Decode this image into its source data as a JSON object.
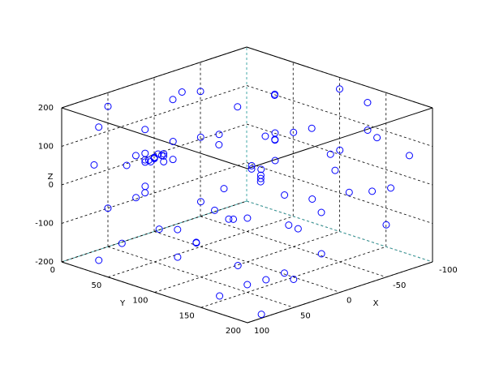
{
  "chart_data": {
    "type": "scatter3d",
    "xlabel": "X",
    "ylabel": "Y",
    "zlabel": "Z",
    "xlim": [
      -100,
      100
    ],
    "ylim": [
      0,
      200
    ],
    "zlim": [
      -200,
      200
    ],
    "xticks": [
      100,
      50,
      0,
      -50,
      -100
    ],
    "yticks": [
      0,
      50,
      100,
      150,
      200
    ],
    "zticks": [
      -200,
      -100,
      0,
      100,
      200
    ],
    "grid": true,
    "color": "#0000ff",
    "marker": "circle",
    "x": [
      80,
      60,
      40,
      90,
      70,
      20,
      -10,
      -40,
      -60,
      -80,
      -90,
      -70,
      -50,
      -30,
      -85,
      -95,
      -60,
      -20,
      10,
      30,
      50,
      70,
      90,
      85,
      65,
      45,
      25,
      5,
      -15,
      -35,
      -55,
      -75,
      -95,
      -45,
      -25,
      15,
      35,
      55,
      75,
      95,
      80,
      60,
      40,
      20,
      0,
      -20,
      -40,
      -60,
      -80,
      -100,
      -90,
      -70,
      -30,
      10,
      30,
      50,
      70,
      90,
      100,
      60,
      50,
      45,
      55,
      48,
      52,
      42,
      58,
      50,
      50,
      46,
      54,
      40,
      60,
      47,
      53,
      30,
      10,
      -10,
      -50,
      20,
      40,
      -65,
      -85,
      75,
      85
    ],
    "y": [
      20,
      10,
      30,
      60,
      90,
      40,
      20,
      10,
      30,
      50,
      80,
      120,
      150,
      180,
      170,
      140,
      190,
      160,
      190,
      170,
      150,
      190,
      160,
      130,
      110,
      130,
      100,
      120,
      90,
      70,
      60,
      40,
      20,
      100,
      130,
      80,
      60,
      80,
      40,
      100,
      180,
      200,
      170,
      150,
      130,
      110,
      200,
      170,
      150,
      100,
      30,
      0,
      40,
      60,
      20,
      0,
      60,
      30,
      80,
      140,
      50,
      55,
      45,
      52,
      48,
      50,
      52,
      60,
      40,
      46,
      54,
      60,
      40,
      57,
      43,
      120,
      160,
      140,
      80,
      190,
      90,
      130,
      190,
      10,
      200
    ],
    "z": [
      150,
      180,
      120,
      90,
      160,
      190,
      170,
      140,
      100,
      130,
      60,
      40,
      90,
      20,
      -20,
      -60,
      -80,
      -40,
      -100,
      -150,
      -180,
      -120,
      -170,
      -60,
      -90,
      -30,
      10,
      60,
      30,
      -10,
      -50,
      -90,
      -130,
      -140,
      -110,
      -70,
      -120,
      -160,
      -140,
      -40,
      40,
      100,
      150,
      190,
      140,
      110,
      170,
      150,
      190,
      170,
      0,
      -30,
      60,
      100,
      -60,
      -100,
      20,
      -180,
      30,
      -10,
      70,
      75,
      65,
      80,
      60,
      70,
      72,
      68,
      74,
      62,
      78,
      66,
      76,
      84,
      56,
      -170,
      -190,
      160,
      180,
      50,
      -20,
      10,
      80,
      40,
      -190
    ]
  }
}
